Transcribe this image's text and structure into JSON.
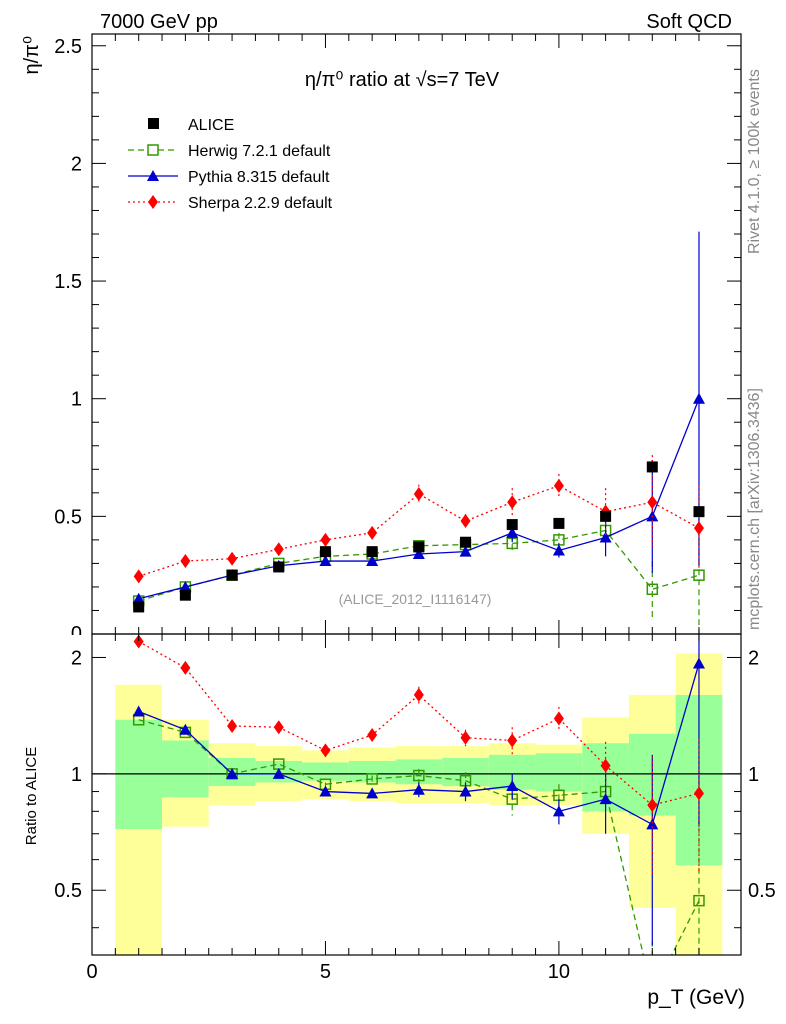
{
  "header": {
    "left": "7000 GeV pp",
    "right": "Soft QCD"
  },
  "side_labels": {
    "rivet": "Rivet 4.1.0, ≥ 100k events",
    "mcplots": "mcplots.cern.ch [arXiv:1306.3436]"
  },
  "chart_data": {
    "type": "scatter",
    "title": "η/π⁰ ratio at √s=7 TeV",
    "xlabel": "p_T (GeV)",
    "ylabel": "η/π⁰",
    "ratio_ylabel": "Ratio to ALICE",
    "analysis_tag": "(ALICE_2012_I1116147)",
    "xlim": [
      0,
      13.9
    ],
    "ylim": [
      0,
      2.55
    ],
    "ratio_ylim": [
      0.34,
      2.3
    ],
    "x_ticks": [
      0,
      5,
      10
    ],
    "y_ticks": [
      0.5,
      1,
      1.5,
      2,
      2.5
    ],
    "y_tick_labels": [
      "0.5",
      "1",
      "1.5",
      "2",
      "2.5"
    ],
    "ratio_ticks": [
      0.5,
      1,
      2
    ],
    "bins": [
      [
        0.5,
        1.5
      ],
      [
        1.5,
        2.5
      ],
      [
        2.5,
        3.5
      ],
      [
        3.5,
        4.5
      ],
      [
        4.5,
        5.5
      ],
      [
        5.5,
        6.5
      ],
      [
        6.5,
        7.5
      ],
      [
        7.5,
        8.5
      ],
      [
        8.5,
        9.5
      ],
      [
        9.5,
        10.5
      ],
      [
        10.5,
        11.5
      ],
      [
        11.5,
        12.5
      ],
      [
        12.5,
        13.5
      ]
    ],
    "x": [
      1,
      2,
      3,
      4,
      5,
      6,
      7,
      8,
      9,
      10,
      11,
      12,
      13
    ],
    "data": {
      "name": "ALICE",
      "values": [
        0.115,
        0.165,
        0.25,
        0.285,
        0.35,
        0.35,
        0.37,
        0.39,
        0.465,
        0.47,
        0.5,
        0.71,
        0.52
      ]
    },
    "band_inner": [
      [
        0.72,
        1.38
      ],
      [
        0.87,
        1.22
      ],
      [
        0.93,
        1.1
      ],
      [
        0.95,
        1.08
      ],
      [
        0.96,
        1.07
      ],
      [
        0.95,
        1.08
      ],
      [
        0.94,
        1.09
      ],
      [
        0.93,
        1.1
      ],
      [
        0.91,
        1.12
      ],
      [
        0.9,
        1.13
      ],
      [
        0.8,
        1.2
      ],
      [
        0.78,
        1.27
      ],
      [
        0.58,
        1.6
      ]
    ],
    "band_outer": [
      [
        0.34,
        1.7
      ],
      [
        0.73,
        1.38
      ],
      [
        0.83,
        1.2
      ],
      [
        0.85,
        1.18
      ],
      [
        0.86,
        1.15
      ],
      [
        0.85,
        1.17
      ],
      [
        0.84,
        1.18
      ],
      [
        0.84,
        1.18
      ],
      [
        0.83,
        1.2
      ],
      [
        0.83,
        1.19
      ],
      [
        0.7,
        1.4
      ],
      [
        0.45,
        1.6
      ],
      [
        0.34,
        2.05
      ]
    ],
    "series": [
      {
        "name": "Herwig 7.2.1 default",
        "color": "#339900",
        "marker": "open-square",
        "dash": "6,4",
        "values": [
          0.14,
          0.2,
          0.25,
          0.3,
          0.33,
          0.34,
          0.375,
          0.38,
          0.385,
          0.4,
          0.44,
          0.19,
          0.25
        ],
        "errors": [
          0,
          0,
          0,
          0,
          0.01,
          0.01,
          0.01,
          0.015,
          0.04,
          0.03,
          0.04,
          0.12,
          0.28
        ],
        "ratio": [
          1.38,
          1.28,
          1.0,
          1.06,
          0.94,
          0.97,
          0.99,
          0.96,
          0.86,
          0.88,
          0.9,
          0.27,
          0.47
        ],
        "ratio_errors": [
          0,
          0,
          0,
          0,
          0.01,
          0.02,
          0.04,
          0.05,
          0.08,
          0.06,
          0.08,
          0.1,
          0.3
        ]
      },
      {
        "name": "Pythia 8.315 default",
        "color": "#0000cc",
        "marker": "filled-triangle",
        "dash": "",
        "values": [
          0.15,
          0.2,
          0.25,
          0.29,
          0.31,
          0.31,
          0.34,
          0.35,
          0.43,
          0.355,
          0.41,
          0.5,
          1.0
        ],
        "errors": [
          0,
          0,
          0,
          0,
          0.01,
          0.01,
          0.015,
          0.02,
          0.04,
          0.03,
          0.08,
          0.24,
          0.71
        ],
        "ratio": [
          1.45,
          1.3,
          1.0,
          1.0,
          0.9,
          0.89,
          0.91,
          0.9,
          0.93,
          0.8,
          0.86,
          0.74,
          1.93
        ],
        "ratio_errors": [
          0,
          0,
          0,
          0,
          0.01,
          0.02,
          0.04,
          0.05,
          0.07,
          0.06,
          0.16,
          0.38,
          1.2
        ]
      },
      {
        "name": "Sherpa 2.2.9 default",
        "color": "#ff0000",
        "marker": "filled-diamond",
        "dash": "2,3",
        "values": [
          0.245,
          0.31,
          0.32,
          0.36,
          0.4,
          0.43,
          0.595,
          0.48,
          0.56,
          0.63,
          0.52,
          0.56,
          0.45
        ],
        "errors": [
          0,
          0,
          0,
          0,
          0.01,
          0.02,
          0.04,
          0.03,
          0.06,
          0.05,
          0.1,
          0.2,
          0.18
        ],
        "ratio": [
          2.2,
          1.88,
          1.33,
          1.32,
          1.15,
          1.26,
          1.6,
          1.24,
          1.22,
          1.39,
          1.05,
          0.83,
          0.89
        ],
        "ratio_errors": [
          0,
          0,
          0,
          0,
          0.02,
          0.04,
          0.08,
          0.06,
          0.1,
          0.1,
          0.16,
          0.28,
          0.34
        ]
      }
    ]
  }
}
